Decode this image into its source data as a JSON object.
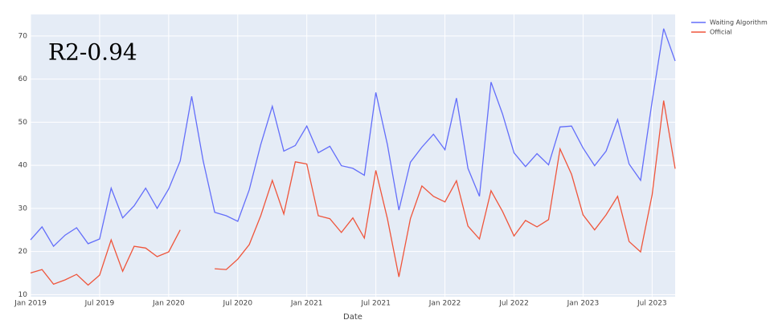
{
  "chart_data": {
    "type": "line",
    "annotation": "R2-0.94",
    "x_label": "Date",
    "x": [
      "2019-01",
      "2019-02",
      "2019-03",
      "2019-04",
      "2019-05",
      "2019-06",
      "2019-07",
      "2019-08",
      "2019-09",
      "2019-10",
      "2019-11",
      "2019-12",
      "2020-01",
      "2020-02",
      "2020-03",
      "2020-04",
      "2020-05",
      "2020-06",
      "2020-07",
      "2020-08",
      "2020-09",
      "2020-10",
      "2020-11",
      "2020-12",
      "2021-01",
      "2021-02",
      "2021-03",
      "2021-04",
      "2021-05",
      "2021-06",
      "2021-07",
      "2021-08",
      "2021-09",
      "2021-10",
      "2021-11",
      "2021-12",
      "2022-01",
      "2022-02",
      "2022-03",
      "2022-04",
      "2022-05",
      "2022-06",
      "2022-07",
      "2022-08",
      "2022-09",
      "2022-10",
      "2022-11",
      "2022-12",
      "2023-01",
      "2023-02",
      "2023-03",
      "2023-04",
      "2023-05",
      "2023-06",
      "2023-07",
      "2023-08",
      "2023-09"
    ],
    "series": [
      {
        "name": "Waiting Algorithm",
        "color": "#636efa",
        "values": [
          22.7,
          25.7,
          21.2,
          23.8,
          25.5,
          21.8,
          22.9,
          34.7,
          27.8,
          30.6,
          34.7,
          30.0,
          34.5,
          41.0,
          56.0,
          41.0,
          29.1,
          28.3,
          27.0,
          34.3,
          44.8,
          53.7,
          43.3,
          44.6,
          49.1,
          42.9,
          44.4,
          39.9,
          39.3,
          37.7,
          56.9,
          44.8,
          29.6,
          40.7,
          44.2,
          47.2,
          43.6,
          55.6,
          39.3,
          32.8,
          59.3,
          51.9,
          42.9,
          39.7,
          42.7,
          40.1,
          48.9,
          49.1,
          44.0,
          39.9,
          43.3,
          50.6,
          40.3,
          36.5,
          54.9,
          71.7,
          64.2
        ]
      },
      {
        "name": "Official",
        "color": "#ef553b",
        "values": [
          15.0,
          15.8,
          12.4,
          13.4,
          14.7,
          12.2,
          14.5,
          22.7,
          15.4,
          21.2,
          20.8,
          18.8,
          19.9,
          25.0,
          null,
          null,
          16.0,
          15.8,
          18.2,
          21.6,
          28.3,
          36.5,
          28.7,
          40.8,
          40.3,
          28.3,
          27.6,
          24.4,
          27.8,
          23.1,
          38.8,
          27.6,
          14.1,
          27.6,
          35.2,
          32.8,
          31.5,
          36.4,
          25.9,
          22.9,
          34.1,
          29.3,
          23.6,
          27.2,
          25.7,
          27.4,
          43.8,
          37.9,
          28.5,
          25.0,
          28.5,
          32.8,
          22.3,
          19.9,
          33.2,
          55.0,
          39.2
        ]
      }
    ],
    "xlim": [
      "2019-01",
      "2023-09"
    ],
    "xticks": [
      {
        "value": "2019-01",
        "label": "Jan 2019"
      },
      {
        "value": "2019-07",
        "label": "Jul 2019"
      },
      {
        "value": "2020-01",
        "label": "Jan 2020"
      },
      {
        "value": "2020-07",
        "label": "Jul 2020"
      },
      {
        "value": "2021-01",
        "label": "Jan 2021"
      },
      {
        "value": "2021-07",
        "label": "Jul 2021"
      },
      {
        "value": "2022-01",
        "label": "Jan 2022"
      },
      {
        "value": "2022-07",
        "label": "Jul 2022"
      },
      {
        "value": "2023-01",
        "label": "Jan 2023"
      },
      {
        "value": "2023-07",
        "label": "Jul 2023"
      }
    ],
    "ylim": [
      9.5,
      75
    ],
    "yticks": [
      10,
      20,
      30,
      40,
      50,
      60,
      70
    ],
    "grid": true,
    "legend": "right"
  }
}
